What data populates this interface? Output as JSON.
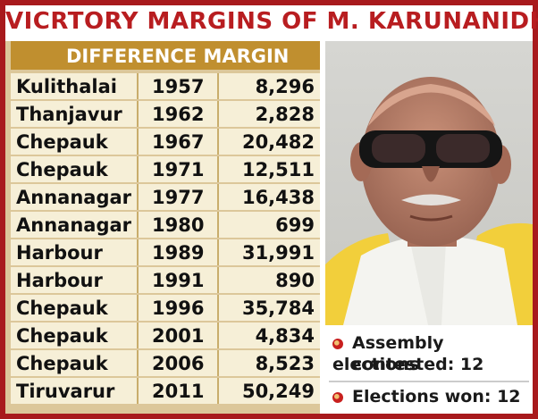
{
  "title": "VICRTORY MARGINS OF M. KARUNANIDHI",
  "table": {
    "header": "DIFFERENCE MARGIN",
    "rows": [
      {
        "place": "Kulithalai",
        "year": "1957",
        "margin": "8,296"
      },
      {
        "place": "Thanjavur",
        "year": "1962",
        "margin": "2,828"
      },
      {
        "place": "Chepauk",
        "year": "1967",
        "margin": "20,482"
      },
      {
        "place": "Chepauk",
        "year": "1971",
        "margin": "12,511"
      },
      {
        "place": "Annanagar",
        "year": "1977",
        "margin": "16,438"
      },
      {
        "place": "Annanagar",
        "year": "1980",
        "margin": "699"
      },
      {
        "place": "Harbour",
        "year": "1989",
        "margin": "31,991"
      },
      {
        "place": "Harbour",
        "year": "1991",
        "margin": "890"
      },
      {
        "place": "Chepauk",
        "year": "1996",
        "margin": "35,784"
      },
      {
        "place": "Chepauk",
        "year": "2001",
        "margin": "4,834"
      },
      {
        "place": "Chepauk",
        "year": "2006",
        "margin": "8,523"
      },
      {
        "place": "Tiruvarur",
        "year": "2011",
        "margin": "50,249"
      }
    ]
  },
  "info": {
    "assembly_line1": "Assembly elections",
    "assembly_line2": "contested: 12",
    "won": "Elections won: 12"
  },
  "colors": {
    "frame": "#a81a1d",
    "title": "#b81d20",
    "header_bg": "#c08f2f",
    "row_bg": "#f6efd7",
    "bullet": "#c8201e"
  }
}
